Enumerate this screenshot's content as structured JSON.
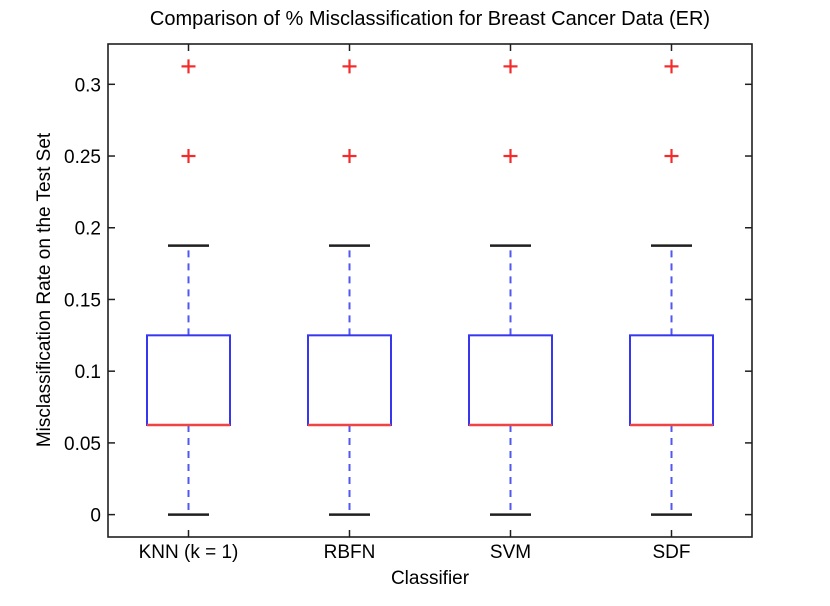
{
  "chart_data": {
    "type": "boxplot",
    "title": "Comparison of % Misclassification for Breast Cancer Data (ER)",
    "xlabel": "Classifier",
    "ylabel": "Misclassification Rate on the Test Set",
    "categories": [
      "KNN (k = 1)",
      "RBFN",
      "SVM",
      "SDF"
    ],
    "series": [
      {
        "name": "KNN (k = 1)",
        "whisker_low": 0,
        "q1": 0.0625,
        "median": 0.0625,
        "q3": 0.125,
        "whisker_high": 0.1875,
        "outliers": [
          0.25,
          0.3125
        ]
      },
      {
        "name": "RBFN",
        "whisker_low": 0,
        "q1": 0.0625,
        "median": 0.0625,
        "q3": 0.125,
        "whisker_high": 0.1875,
        "outliers": [
          0.25,
          0.3125
        ]
      },
      {
        "name": "SVM",
        "whisker_low": 0,
        "q1": 0.0625,
        "median": 0.0625,
        "q3": 0.125,
        "whisker_high": 0.1875,
        "outliers": [
          0.25,
          0.3125
        ]
      },
      {
        "name": "SDF",
        "whisker_low": 0,
        "q1": 0.0625,
        "median": 0.0625,
        "q3": 0.125,
        "whisker_high": 0.1875,
        "outliers": [
          0.25,
          0.3125
        ]
      }
    ],
    "xlim": [
      0.5,
      4.5
    ],
    "ylim": [
      -0.0156,
      0.3281
    ],
    "yticks": [
      0,
      0.05,
      0.1,
      0.15,
      0.2,
      0.25,
      0.3
    ],
    "ytick_labels": [
      "0",
      "0.05",
      "0.1",
      "0.15",
      "0.2",
      "0.25",
      "0.3"
    ],
    "grid": false,
    "legend": "none",
    "colors": {
      "box": "#3737ee",
      "whisker": "#5158f0",
      "median": "#ee4444",
      "cap": "#1f1f1f",
      "outlier": "#f52b2b",
      "axis": "#1f1f1f",
      "text": "#000000"
    }
  }
}
